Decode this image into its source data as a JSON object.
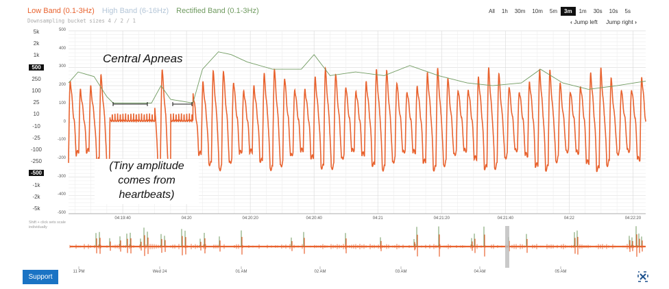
{
  "legend": {
    "low_band": "Low Band (0.1-3Hz)",
    "high_band": "High Band (6-16Hz)",
    "rectified_band": "Rectified Band (0.1-3Hz)"
  },
  "downsampling": "Downsampling bucket sizes 4 / 2 / 1",
  "range_buttons": [
    "All",
    "1h",
    "30m",
    "10m",
    "5m",
    "3m",
    "1m",
    "30s",
    "10s",
    "5s"
  ],
  "range_selected": "3m",
  "jump_left": "Jump left",
  "jump_right": "Jump right",
  "scale_buttons": [
    "5k",
    "2k",
    "1k",
    "500",
    "250",
    "100",
    "25",
    "10",
    "-10",
    "-25",
    "-100",
    "-250",
    "-500",
    "-1k",
    "-2k",
    "-5k"
  ],
  "scale_selected": [
    "500",
    "-500"
  ],
  "scale_hint": "Shift + click sets scale individually",
  "annotations": {
    "central_apneas": "Central Apneas",
    "tiny_amplitude": "(Tiny amplitude comes from heartbeats)"
  },
  "support_button": "Support",
  "icons": {
    "jump_left": "chevron-left-icon",
    "jump_right": "chevron-right-icon",
    "fullscreen": "expand-icon"
  },
  "colors": {
    "low_band": "#e8622e",
    "high_band": "#a9bfd4",
    "rectified_band": "#6f9a5f",
    "selected": "#111111",
    "support": "#1a73c4"
  },
  "chart_data": {
    "type": "line",
    "ylim": [
      -500,
      500
    ],
    "y_ticks": [
      "500",
      "400",
      "300",
      "200",
      "100",
      "0",
      "-100",
      "-200",
      "-300",
      "-400",
      "-500"
    ],
    "x_ticks": [
      "04:19:40",
      "04:20",
      "04:20:20",
      "04:20:40",
      "04:21",
      "04:21:20",
      "04:21:40",
      "04:22",
      "04:22:20"
    ],
    "xlim": [
      "04:19:23",
      "04:22:24"
    ],
    "grid": true,
    "series": [
      {
        "name": "Rectified Band (0.1-3Hz)",
        "points": [
          [
            "04:19:23",
            215
          ],
          [
            "04:19:26",
            275
          ],
          [
            "04:19:31",
            250
          ],
          [
            "04:19:35",
            140
          ],
          [
            "04:19:37",
            105
          ],
          [
            "04:19:49",
            105
          ],
          [
            "04:19:52",
            200
          ],
          [
            "04:19:55",
            125
          ],
          [
            "04:20:02",
            105
          ],
          [
            "04:20:05",
            290
          ],
          [
            "04:20:10",
            385
          ],
          [
            "04:20:14",
            370
          ],
          [
            "04:20:19",
            330
          ],
          [
            "04:20:27",
            290
          ],
          [
            "04:20:36",
            290
          ],
          [
            "04:20:40",
            370
          ],
          [
            "04:20:45",
            255
          ],
          [
            "04:20:53",
            275
          ],
          [
            "04:21:02",
            255
          ],
          [
            "04:21:10",
            310
          ],
          [
            "04:21:19",
            255
          ],
          [
            "04:21:28",
            215
          ],
          [
            "04:21:36",
            200
          ],
          [
            "04:21:45",
            215
          ],
          [
            "04:21:51",
            290
          ],
          [
            "04:21:58",
            215
          ],
          [
            "04:22:06",
            180
          ],
          [
            "04:22:15",
            200
          ],
          [
            "04:22:24",
            225
          ]
        ]
      },
      {
        "name": "Low Band (0.1-3Hz)",
        "breath_period_s": 3.2,
        "peak": 290,
        "trough": -260,
        "apneas": [
          [
            "04:19:36",
            "04:19:50"
          ],
          [
            "04:19:55",
            "04:20:02"
          ]
        ],
        "apnea_range": [
          0,
          40
        ]
      }
    ],
    "navigator": {
      "x_ticks": [
        "11 PM",
        "Wed 24",
        "01 AM",
        "02 AM",
        "03 AM",
        "04 AM",
        "05 AM"
      ],
      "selected_window": "04:19:23 - 04:22:24"
    }
  }
}
